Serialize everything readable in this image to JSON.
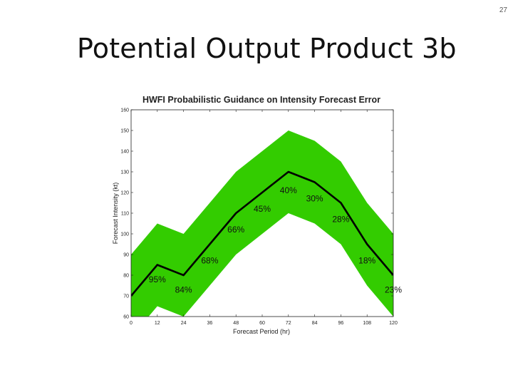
{
  "slide": {
    "page_number": "27",
    "title": "Potential Output Product 3b"
  },
  "chart_data": {
    "type": "area",
    "title": "HWFI Probabilistic Guidance on Intensity Forecast Error",
    "xlabel": "Forecast Period (hr)",
    "ylabel": "Forecast Intensity (kt)",
    "xlim": [
      0,
      120
    ],
    "ylim": [
      60,
      160
    ],
    "xticks": [
      0,
      12,
      24,
      36,
      48,
      60,
      72,
      84,
      96,
      108,
      120
    ],
    "yticks": [
      60,
      70,
      80,
      90,
      100,
      110,
      120,
      130,
      140,
      150,
      160
    ],
    "grid": false,
    "band_color": "#33cc00",
    "line_color": "#000000",
    "x": [
      0,
      12,
      24,
      36,
      48,
      60,
      72,
      84,
      96,
      108,
      120
    ],
    "upper": [
      90,
      105,
      100,
      115,
      130,
      140,
      150,
      145,
      135,
      115,
      100
    ],
    "forecast": [
      70,
      85,
      80,
      95,
      110,
      120,
      130,
      125,
      115,
      95,
      80
    ],
    "lower": [
      50,
      65,
      60,
      75,
      90,
      100,
      110,
      105,
      95,
      75,
      60
    ],
    "annotations": [
      {
        "text": "95%",
        "x": 12,
        "y": 78
      },
      {
        "text": "84%",
        "x": 24,
        "y": 73
      },
      {
        "text": "68%",
        "x": 36,
        "y": 87
      },
      {
        "text": "66%",
        "x": 48,
        "y": 102
      },
      {
        "text": "45%",
        "x": 60,
        "y": 112
      },
      {
        "text": "40%",
        "x": 72,
        "y": 121
      },
      {
        "text": "30%",
        "x": 84,
        "y": 117
      },
      {
        "text": "28%",
        "x": 96,
        "y": 107
      },
      {
        "text": "18%",
        "x": 108,
        "y": 87
      },
      {
        "text": "23%",
        "x": 120,
        "y": 73
      }
    ]
  }
}
